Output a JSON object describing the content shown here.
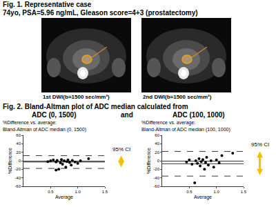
{
  "header": {
    "title": "Fig. 1. Representative case",
    "subtitle": "74yo, PSA=5.96 ng/mL, Gleason score=4+3 (prostatectomy)"
  },
  "images": [
    {
      "caption": "1st DWI(b=1500 sec/mm²)"
    },
    {
      "caption": "2nd DWI(b=1500 sec/mm²)"
    }
  ],
  "figure2": {
    "title": "Fig. 2. Bland-Altman plot of ADC median calculated from",
    "labels": [
      "ADC (0, 1500)",
      "and",
      "ADC (100, 1000)"
    ]
  },
  "chart_data": [
    {
      "type": "scatter",
      "title": [
        "%Difference vs. average:",
        "Bland-Altman of ADC median (0, 1500)"
      ],
      "x_label": "Average",
      "y_label": "%Difference",
      "x": [
        0.45,
        0.5,
        0.55,
        0.6,
        0.62,
        0.65,
        0.68,
        0.7,
        0.72,
        0.75,
        0.78,
        0.8,
        0.82,
        0.85,
        0.88,
        0.9,
        0.95,
        1.0,
        1.05,
        1.2,
        0.6
      ],
      "values": [
        -2,
        0,
        2,
        -3,
        1,
        -20,
        -5,
        3,
        -8,
        0,
        -15,
        -2,
        2,
        -4,
        -10,
        1,
        -3,
        -6,
        0,
        5,
        -22
      ],
      "color": "#000000",
      "marker": "circle",
      "xlim": [
        0,
        1.5
      ],
      "xticks": [
        0.5,
        {
          "value": 1,
          "label": "1.0"
        },
        1.5
      ],
      "ylim": [
        -60,
        60
      ],
      "yticks": [
        -60,
        -40,
        -20,
        0,
        20,
        40,
        60
      ],
      "mean_difference": -3,
      "upper_limit": 12,
      "lower_limit": -18,
      "annotation": "95% CI",
      "grid": false
    },
    {
      "type": "scatter",
      "title": [
        "%Difference vs. average:",
        "Bland-Altman of ADC median (100, 1000)"
      ],
      "x_label": "Average",
      "y_label": "%Difference",
      "x": [
        0.45,
        0.5,
        0.55,
        0.6,
        0.62,
        0.65,
        0.68,
        0.7,
        0.72,
        0.75,
        0.78,
        0.8,
        0.82,
        0.85,
        0.9,
        0.95,
        1.0,
        1.05,
        1.1,
        1.3
      ],
      "values": [
        -3,
        2,
        -8,
        -52,
        0,
        -6,
        5,
        -12,
        -2,
        3,
        -20,
        -4,
        8,
        -10,
        0,
        -15,
        2,
        -5,
        12,
        18
      ],
      "color": "#000000",
      "marker": "circle",
      "xlim": [
        0,
        1.5
      ],
      "xticks": [
        0.5,
        {
          "value": 1,
          "label": "1.0"
        },
        1.5
      ],
      "ylim": [
        -60,
        60
      ],
      "yticks": [
        -60,
        -40,
        -20,
        0,
        20,
        40,
        60
      ],
      "mean_difference": -7,
      "upper_limit": 22,
      "lower_limit": -36,
      "annotation": "95% CI",
      "grid": false
    }
  ]
}
